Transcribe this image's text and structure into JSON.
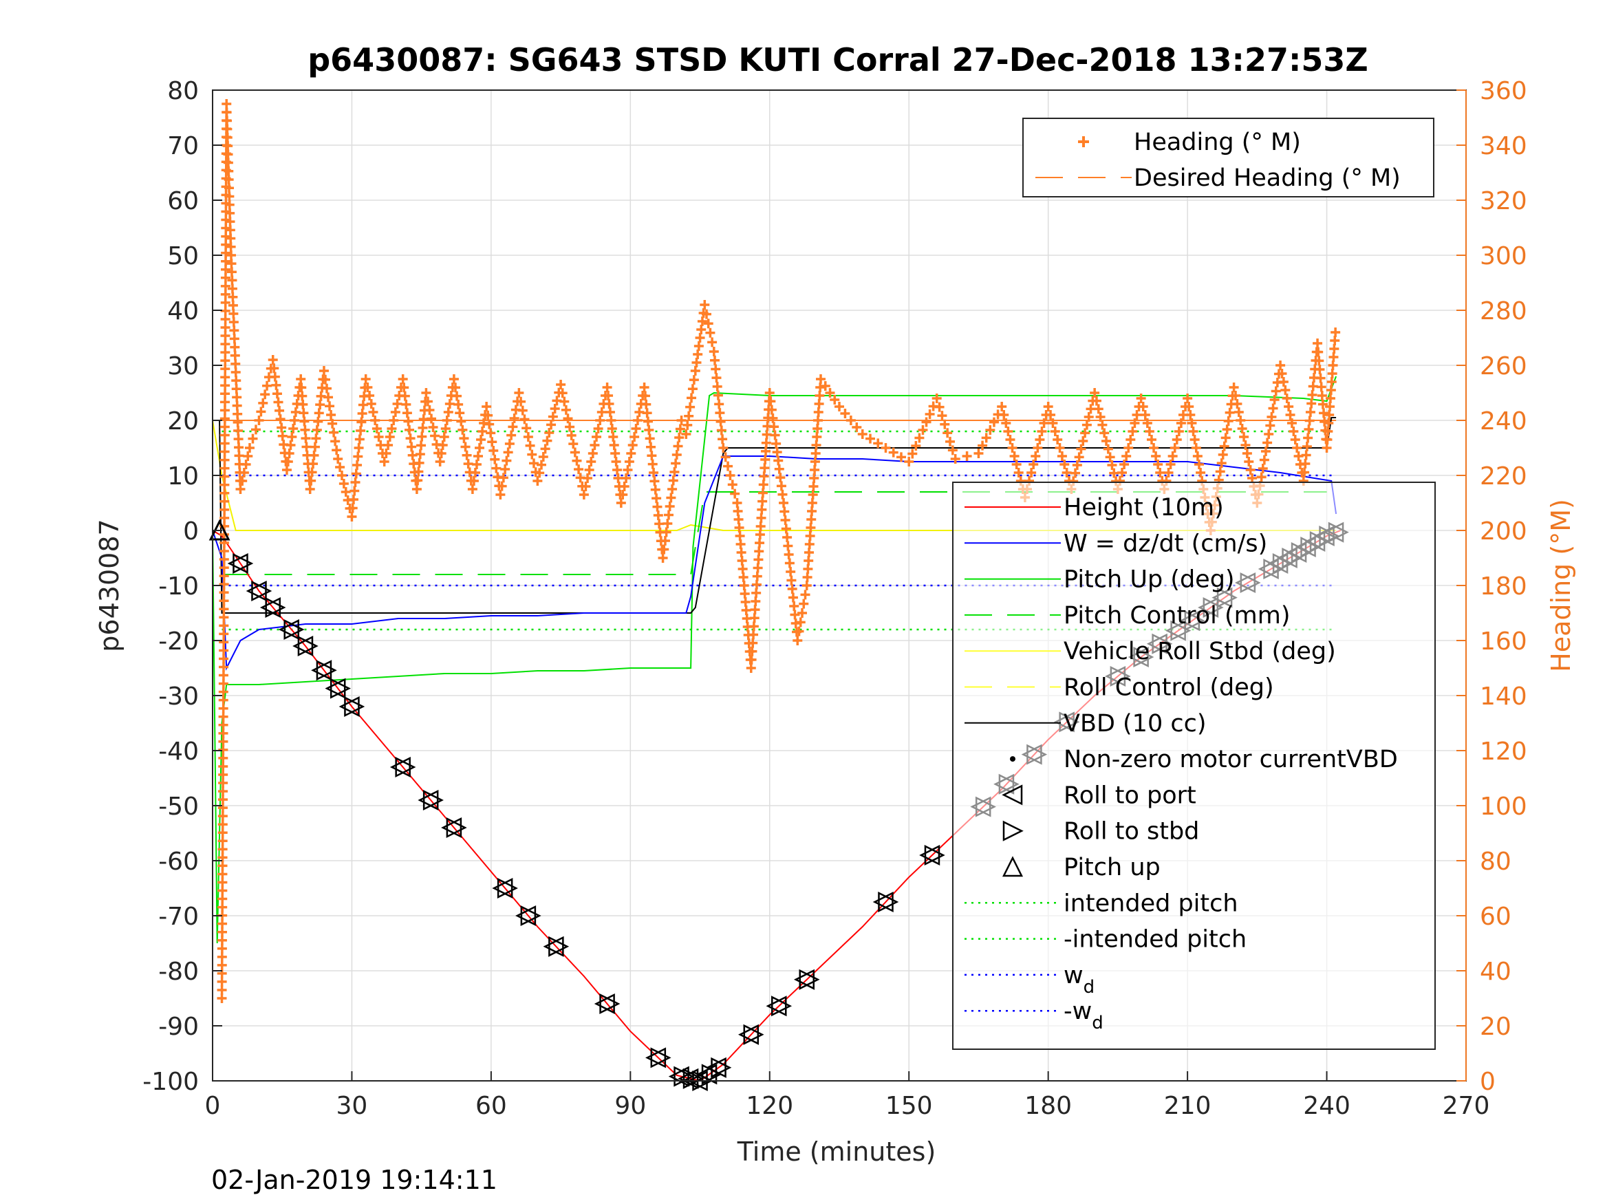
{
  "chart_data": {
    "type": "line",
    "title": "p6430087: SG643 STSD KUTI Corral 27-Dec-2018 13:27:53Z",
    "xlabel": "Time (minutes)",
    "ylabel_left": "p6430087",
    "ylabel_right": "Heading (°M)",
    "footer": "02-Jan-2019 19:14:11",
    "xlim": [
      0,
      270
    ],
    "ylim_left": [
      -100,
      80
    ],
    "ylim_right": [
      0,
      360
    ],
    "xticks": [
      "0",
      "30",
      "60",
      "90",
      "120",
      "150",
      "180",
      "210",
      "240",
      "270"
    ],
    "yticks_left": [
      "80",
      "70",
      "60",
      "50",
      "40",
      "30",
      "20",
      "10",
      "0",
      "-10",
      "-20",
      "-30",
      "-40",
      "-50",
      "-60",
      "-70",
      "-80",
      "-90",
      "-100"
    ],
    "yticks_right": [
      "360",
      "340",
      "320",
      "300",
      "280",
      "260",
      "240",
      "220",
      "200",
      "180",
      "160",
      "140",
      "120",
      "100",
      "80",
      "60",
      "40",
      "20",
      "0"
    ],
    "grid": true,
    "colors": {
      "heading": "#ff7f27",
      "height": "#ff0000",
      "w": "#0000ff",
      "pitch": "#00e000",
      "roll": "#ffff33",
      "vbd": "#000000",
      "axis_right": "#ee7722"
    },
    "legend_top": [
      {
        "label": "Heading (° M)",
        "style": "plus"
      },
      {
        "label": "Desired Heading (° M)",
        "style": "dash"
      }
    ],
    "legend_main": [
      {
        "label": "Height (10m)",
        "style": "line",
        "color": "#ff0000"
      },
      {
        "label": "W = dz/dt (cm/s)",
        "style": "line",
        "color": "#0000ff"
      },
      {
        "label": "Pitch Up (deg)",
        "style": "line",
        "color": "#00e000"
      },
      {
        "label": "Pitch Control (mm)",
        "style": "dash",
        "color": "#00e000"
      },
      {
        "label": "Vehicle Roll Stbd (deg)",
        "style": "line",
        "color": "#ffff33"
      },
      {
        "label": "Roll Control (deg)",
        "style": "dash",
        "color": "#ffff33"
      },
      {
        "label": "VBD (10 cc)",
        "style": "line",
        "color": "#000000"
      },
      {
        "label": "Non-zero motor currentVBD",
        "style": "dot",
        "color": "#000000"
      },
      {
        "label": "Roll to port",
        "style": "tri-left",
        "color": "#000000"
      },
      {
        "label": "Roll to stbd",
        "style": "tri-right",
        "color": "#000000"
      },
      {
        "label": "Pitch up",
        "style": "tri-up",
        "color": "#000000"
      },
      {
        "label": "intended pitch",
        "style": "dot-line",
        "color": "#00e000"
      },
      {
        "label": "-intended pitch",
        "style": "dot-line",
        "color": "#00e000"
      },
      {
        "label": "w",
        "sub": "d",
        "style": "dot-line",
        "color": "#0000ff"
      },
      {
        "label": "-w",
        "sub": "d",
        "style": "dot-line",
        "color": "#0000ff"
      }
    ],
    "series": [
      {
        "name": "Height (10m)",
        "axis": "left",
        "x": [
          0,
          2,
          10,
          20,
          30,
          40,
          50,
          60,
          70,
          80,
          90,
          100,
          105,
          110,
          120,
          130,
          140,
          150,
          160,
          170,
          180,
          190,
          200,
          210,
          220,
          230,
          240,
          243
        ],
        "y": [
          0,
          -1,
          -11,
          -21,
          -32,
          -42,
          -52,
          -62,
          -72,
          -81,
          -91,
          -99,
          -100,
          -97,
          -88,
          -80,
          -72,
          -63,
          -55,
          -47,
          -38,
          -30,
          -23,
          -17,
          -11,
          -6,
          -1,
          0
        ]
      },
      {
        "name": "VBD (10 cc)",
        "axis": "left",
        "x": [
          0,
          1.5,
          2,
          103,
          104,
          110,
          111,
          240,
          241,
          242
        ],
        "y": [
          20,
          20,
          -15,
          -15,
          -14,
          14,
          15,
          15,
          20.5,
          20.5
        ]
      },
      {
        "name": "W = dz/dt (cm/s)",
        "axis": "left",
        "x": [
          0,
          2,
          3,
          6,
          10,
          20,
          30,
          40,
          50,
          60,
          70,
          80,
          90,
          102,
          103,
          106,
          110,
          120,
          130,
          140,
          150,
          160,
          170,
          180,
          190,
          200,
          210,
          220,
          230,
          241,
          242
        ],
        "y": [
          0,
          -5,
          -25,
          -20,
          -18,
          -17,
          -17,
          -16,
          -16,
          -15.5,
          -15.5,
          -15,
          -15,
          -15,
          -12,
          5,
          13.5,
          13.5,
          13,
          13,
          12.5,
          12.5,
          12.5,
          12.5,
          12.5,
          12.5,
          12.5,
          11.5,
          10.5,
          9,
          3
        ]
      },
      {
        "name": "Pitch Up (deg)",
        "axis": "left",
        "x": [
          0,
          1,
          2,
          3,
          5,
          10,
          20,
          30,
          40,
          50,
          60,
          70,
          80,
          90,
          100,
          103,
          103.5,
          107,
          108,
          120,
          140,
          160,
          180,
          200,
          220,
          235,
          240,
          242
        ],
        "y": [
          0,
          -75,
          -35,
          -28,
          -28,
          -28,
          -27.5,
          -27,
          -26.5,
          -26,
          -26,
          -25.5,
          -25.5,
          -25,
          -25,
          -25,
          -3,
          24.5,
          25,
          24.5,
          24.5,
          24.5,
          24.5,
          24.5,
          24.5,
          24,
          23.5,
          28
        ]
      },
      {
        "name": "Vehicle Roll Stbd (deg)",
        "axis": "left",
        "x": [
          0,
          2,
          5,
          10,
          20,
          30,
          40,
          50,
          60,
          70,
          80,
          90,
          100,
          103,
          110,
          130,
          150,
          170,
          190,
          210,
          230,
          242
        ],
        "y": [
          20,
          10,
          0,
          0,
          0,
          0,
          0,
          0,
          0,
          0,
          0,
          0,
          0,
          1,
          0,
          0,
          0,
          0,
          0,
          0,
          0,
          0
        ]
      },
      {
        "name": "Pitch Control (mm)",
        "axis": "left",
        "x": [
          2,
          103,
          106,
          240
        ],
        "y": [
          -8,
          -8,
          7,
          7
        ]
      },
      {
        "name": "Heading (° M)",
        "axis": "right",
        "x": [
          2,
          3,
          4,
          6,
          8,
          10,
          13,
          16,
          19,
          21,
          24,
          27,
          30,
          33,
          37,
          41,
          44,
          46,
          49,
          52,
          56,
          59,
          62,
          66,
          70,
          75,
          80,
          85,
          88,
          93,
          97,
          101,
          102,
          104,
          106,
          108,
          110,
          113,
          116,
          120,
          123,
          126,
          128,
          131,
          135,
          140,
          145,
          150,
          156,
          160,
          165,
          170,
          175,
          180,
          185,
          190,
          195,
          200,
          205,
          210,
          215,
          220,
          225,
          230,
          235,
          238,
          240,
          242
        ],
        "y": [
          30,
          355,
          300,
          215,
          230,
          240,
          262,
          222,
          255,
          215,
          258,
          226,
          205,
          255,
          225,
          255,
          215,
          250,
          225,
          255,
          215,
          245,
          213,
          250,
          218,
          253,
          213,
          252,
          210,
          252,
          190,
          240,
          235,
          258,
          282,
          265,
          230,
          210,
          150,
          250,
          210,
          160,
          180,
          255,
          245,
          235,
          230,
          225,
          248,
          226,
          228,
          245,
          212,
          245,
          215,
          250,
          215,
          248,
          215,
          248,
          200,
          252,
          210,
          260,
          218,
          268,
          230,
          275
        ]
      },
      {
        "name": "Desired Heading (° M)",
        "axis": "right",
        "x": [
          2,
          242
        ],
        "y": [
          240,
          240
        ]
      }
    ],
    "reference_lines": [
      {
        "name": "intended pitch",
        "y": 18
      },
      {
        "name": "-intended pitch",
        "y": -18
      },
      {
        "name": "w_d",
        "y": 10
      },
      {
        "name": "-w_d",
        "y": -10
      }
    ]
  }
}
